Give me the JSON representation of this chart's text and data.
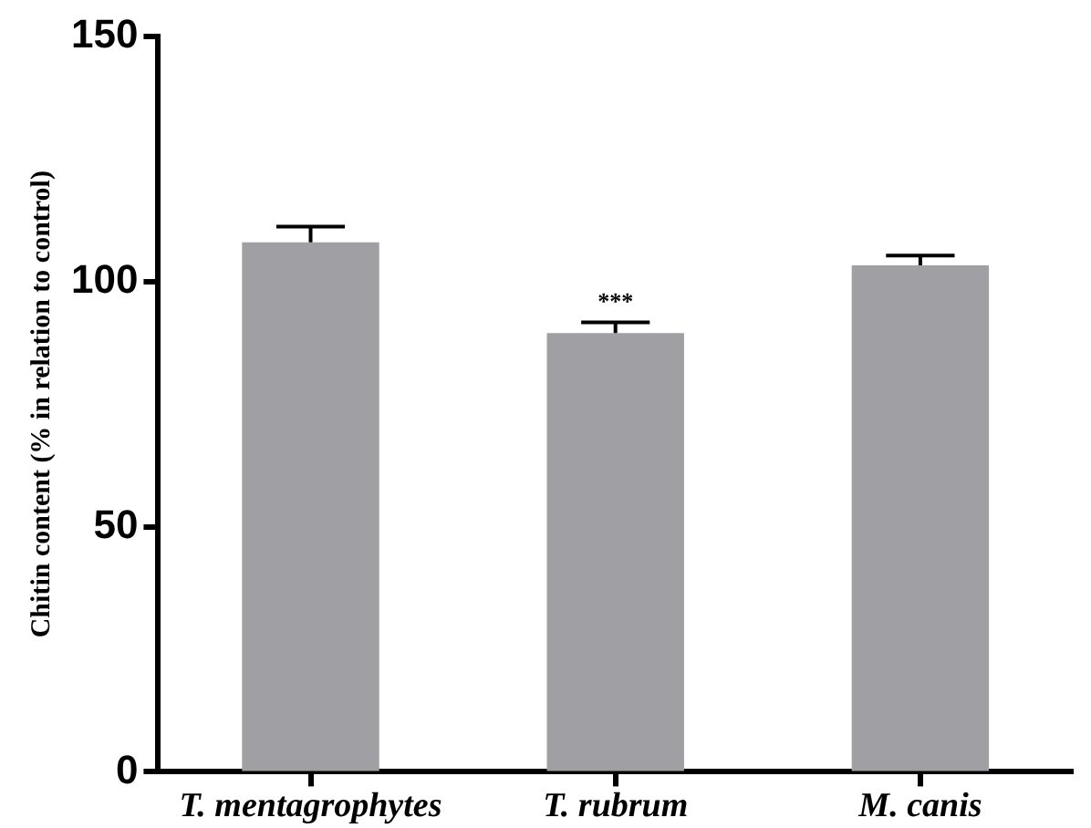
{
  "chart_data": {
    "type": "bar",
    "ylabel": "Chitin content (% in relation to control)",
    "categories": [
      "T. mentagrophytes",
      "T. rubrum",
      "M. canis"
    ],
    "values": [
      108,
      89.5,
      103.3
    ],
    "errors": [
      3.2,
      2.2,
      2
    ],
    "color": "#a09fa4",
    "ylim": [
      0,
      150
    ],
    "yticks": [
      0,
      50,
      100,
      150
    ],
    "grid": false,
    "annotations": [
      {
        "text": "***",
        "x": "T. rubrum",
        "y": 91.7
      }
    ]
  }
}
